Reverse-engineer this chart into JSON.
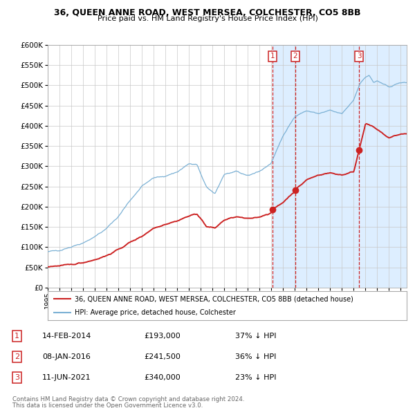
{
  "title": "36, QUEEN ANNE ROAD, WEST MERSEA, COLCHESTER, CO5 8BB",
  "subtitle": "Price paid vs. HM Land Registry's House Price Index (HPI)",
  "legend_line1": "36, QUEEN ANNE ROAD, WEST MERSEA, COLCHESTER, CO5 8BB (detached house)",
  "legend_line2": "HPI: Average price, detached house, Colchester",
  "footer1": "Contains HM Land Registry data © Crown copyright and database right 2024.",
  "footer2": "This data is licensed under the Open Government Licence v3.0.",
  "transactions": [
    {
      "num": 1,
      "date": "14-FEB-2014",
      "price": "£193,000",
      "hpi": "37% ↓ HPI",
      "year": 2014.12
    },
    {
      "num": 2,
      "date": "08-JAN-2016",
      "price": "£241,500",
      "hpi": "36% ↓ HPI",
      "year": 2016.03
    },
    {
      "num": 3,
      "date": "11-JUN-2021",
      "price": "£340,000",
      "hpi": "23% ↓ HPI",
      "year": 2021.45
    }
  ],
  "transaction_values": [
    193000,
    241500,
    340000
  ],
  "hpi_color": "#7ab0d4",
  "sale_color": "#cc2222",
  "background_color": "#ffffff",
  "plot_bg_color": "#ffffff",
  "grid_color": "#c8c8c8",
  "shade_color": "#ddeeff",
  "ylim": [
    0,
    600000
  ],
  "yticks": [
    0,
    50000,
    100000,
    150000,
    200000,
    250000,
    300000,
    350000,
    400000,
    450000,
    500000,
    550000,
    600000
  ],
  "xmin": 1995,
  "xmax": 2025.5
}
